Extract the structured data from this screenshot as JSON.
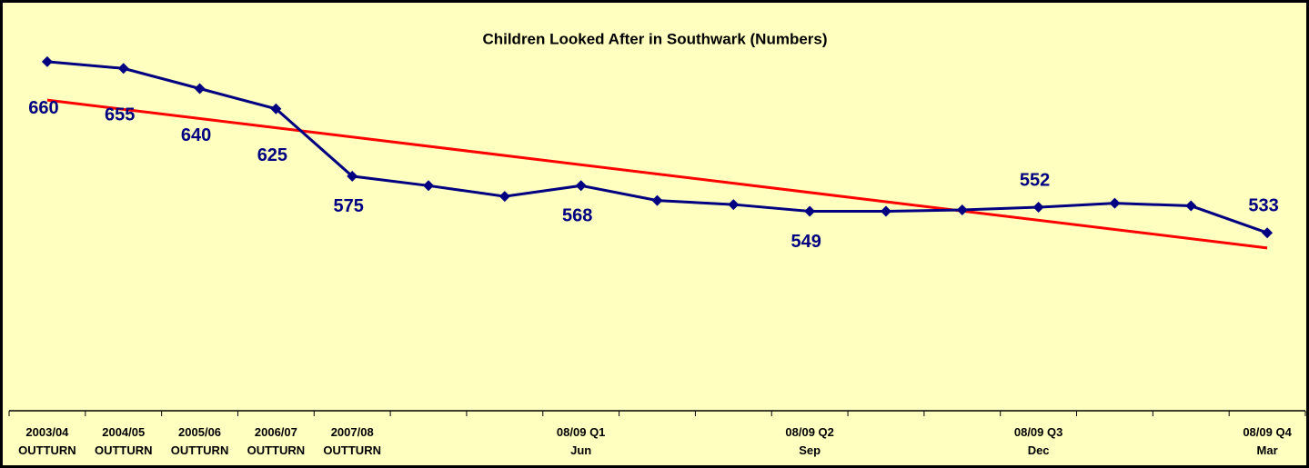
{
  "chart_data": {
    "type": "line",
    "title": "Children Looked After in Southwark (Numbers)",
    "categories": [
      [
        "2003/04",
        "OUTTURN"
      ],
      [
        "2004/05",
        "OUTTURN"
      ],
      [
        "2005/06",
        "OUTTURN"
      ],
      [
        "2006/07",
        "OUTTURN"
      ],
      [
        "2007/08",
        "OUTTURN"
      ],
      null,
      null,
      [
        "08/09 Q1",
        "Jun"
      ],
      null,
      null,
      [
        "08/09 Q2",
        "Sep"
      ],
      null,
      null,
      [
        "08/09 Q3",
        "Dec"
      ],
      null,
      null,
      [
        "08/09 Q4",
        "Mar"
      ]
    ],
    "series": [
      {
        "color": "#000080",
        "values": [
          660,
          655,
          640,
          625,
          575,
          568,
          560,
          568,
          557,
          554,
          549,
          549,
          550,
          552,
          555,
          553,
          533
        ],
        "value_labels": [
          "660",
          "655",
          "640",
          "625",
          "575",
          null,
          null,
          "568",
          null,
          null,
          "549",
          null,
          null,
          "552",
          null,
          null,
          "533"
        ]
      }
    ],
    "ylim": [
      401,
      699
    ],
    "trendline": true,
    "trendline_color": "#ff0000",
    "background": "#ffffc0"
  }
}
